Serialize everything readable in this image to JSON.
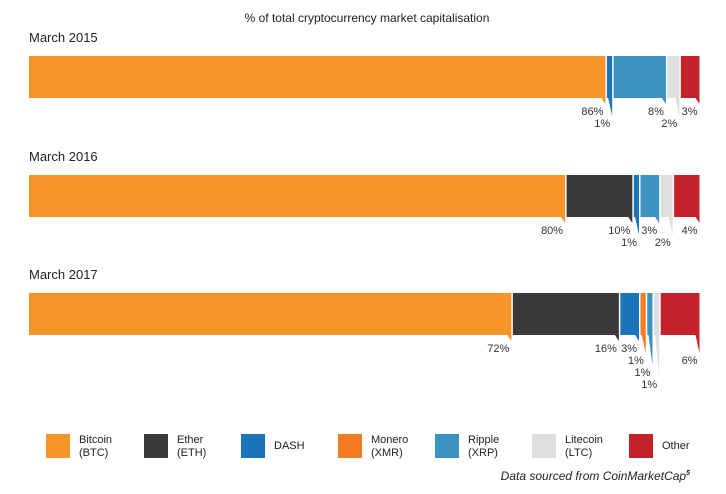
{
  "chart_data": {
    "type": "bar",
    "orientation": "horizontal-stacked-100",
    "title": "% of total cryptocurrency market capitalisation",
    "unit": "%",
    "legend_position": "bottom",
    "categories": [
      "Bitcoin (BTC)",
      "Ether (ETH)",
      "DASH",
      "Monero (XMR)",
      "Ripple (XRP)",
      "Litecoin (LTC)",
      "Other"
    ],
    "rows": [
      {
        "label": "March 2015",
        "segments": [
          {
            "series": "Bitcoin (BTC)",
            "value": 86,
            "display": "86%"
          },
          {
            "series": "DASH",
            "value": 1,
            "display": "1%"
          },
          {
            "series": "Ripple (XRP)",
            "value": 8,
            "display": "8%"
          },
          {
            "series": "Litecoin (LTC)",
            "value": 2,
            "display": "2%"
          },
          {
            "series": "Other",
            "value": 3,
            "display": "3%"
          }
        ]
      },
      {
        "label": "March 2016",
        "segments": [
          {
            "series": "Bitcoin (BTC)",
            "value": 80,
            "display": "80%"
          },
          {
            "series": "Ether (ETH)",
            "value": 10,
            "display": "10%"
          },
          {
            "series": "DASH",
            "value": 1,
            "display": "1%"
          },
          {
            "series": "Ripple (XRP)",
            "value": 3,
            "display": "3%"
          },
          {
            "series": "Litecoin (LTC)",
            "value": 2,
            "display": "2%"
          },
          {
            "series": "Other",
            "value": 4,
            "display": "4%"
          }
        ]
      },
      {
        "label": "March 2017",
        "segments": [
          {
            "series": "Bitcoin (BTC)",
            "value": 72,
            "display": "72%"
          },
          {
            "series": "Ether (ETH)",
            "value": 16,
            "display": "16%"
          },
          {
            "series": "DASH",
            "value": 3,
            "display": "3%"
          },
          {
            "series": "Monero (XMR)",
            "value": 1,
            "display": "1%"
          },
          {
            "series": "Ripple (XRP)",
            "value": 1,
            "display": "1%"
          },
          {
            "series": "Litecoin (LTC)",
            "value": 1,
            "display": "1%"
          },
          {
            "series": "Other",
            "value": 6,
            "display": "6%"
          }
        ]
      }
    ]
  },
  "legend": [
    {
      "line1": "Bitcoin",
      "line2": "(BTC)",
      "color": "#F6952A"
    },
    {
      "line1": "Ether",
      "line2": "(ETH)",
      "color": "#3A3A3C"
    },
    {
      "line1": "DASH",
      "line2": "",
      "color": "#1B75BB"
    },
    {
      "line1": "Monero",
      "line2": "(XMR)",
      "color": "#F47B20"
    },
    {
      "line1": "Ripple",
      "line2": "(XRP)",
      "color": "#3C92C0"
    },
    {
      "line1": "Litecoin",
      "line2": "(LTC)",
      "color": "#DEDFE1"
    },
    {
      "line1": "Other",
      "line2": "",
      "color": "#C4222B"
    }
  ],
  "source": {
    "text": "Data sourced from CoinMarketCap",
    "footnote": "5"
  }
}
